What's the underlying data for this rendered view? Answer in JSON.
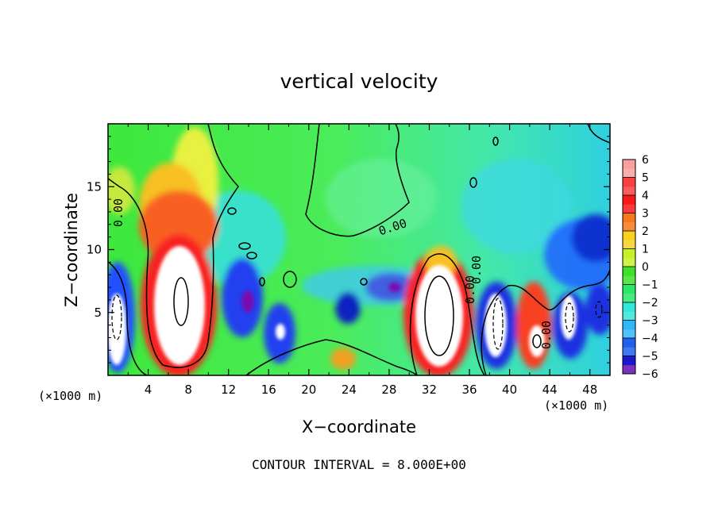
{
  "chart_data": {
    "type": "heatmap",
    "title": "vertical velocity",
    "xlabel": "X−coordinate",
    "ylabel": "Z−coordinate",
    "x_unit_label_left": "(×1000 m)",
    "x_unit_label_right": "(×1000 m)",
    "footer": "CONTOUR INTERVAL = 8.000E+00",
    "xlim": [
      0,
      50
    ],
    "ylim": [
      0,
      20
    ],
    "xticks": [
      "4",
      "8",
      "12",
      "16",
      "20",
      "24",
      "28",
      "32",
      "36",
      "40",
      "44",
      "48"
    ],
    "yticks": [
      "5",
      "10",
      "15"
    ],
    "colorbar": {
      "ticks": [
        "6",
        "5",
        "4",
        "3",
        "2",
        "1",
        "0",
        "−1",
        "−2",
        "−3",
        "−4",
        "−5",
        "−6"
      ],
      "range": [
        -6,
        6
      ]
    },
    "contour_labels": [
      "0.00",
      "0.00",
      "0.00",
      "0.00",
      "0.00"
    ],
    "contour_interval": 8.0
  }
}
